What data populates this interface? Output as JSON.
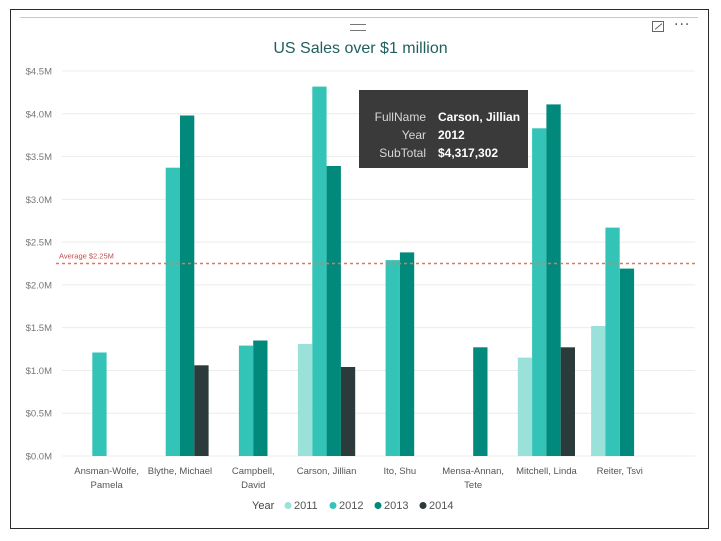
{
  "chart_data": {
    "type": "bar",
    "title": "US Sales over $1 million",
    "categories": [
      [
        "Ansman-Wolfe,",
        "Pamela"
      ],
      [
        "Blythe, Michael"
      ],
      [
        "Campbell,",
        "David"
      ],
      [
        "Carson, Jillian"
      ],
      [
        "Ito, Shu"
      ],
      [
        "Mensa-Annan,",
        "Tete"
      ],
      [
        "Mitchell, Linda"
      ],
      [
        "Reiter, Tsvi"
      ]
    ],
    "series": [
      {
        "name": "2011",
        "color": "#99e1d9",
        "values": [
          null,
          null,
          null,
          1.31,
          null,
          null,
          1.15,
          1.52
        ]
      },
      {
        "name": "2012",
        "color": "#33c4b7",
        "values": [
          1.21,
          3.37,
          1.29,
          4.317302,
          2.29,
          null,
          3.83,
          2.67
        ]
      },
      {
        "name": "2013",
        "color": "#01897b",
        "values": [
          null,
          3.98,
          1.35,
          3.39,
          2.38,
          1.27,
          4.11,
          2.19
        ]
      },
      {
        "name": "2014",
        "color": "#2b3a3a",
        "values": [
          null,
          1.06,
          null,
          1.04,
          null,
          null,
          1.27,
          null
        ]
      }
    ],
    "ylim": [
      0,
      4.5
    ],
    "yticks": [
      "$0.0M",
      "$0.5M",
      "$1.0M",
      "$1.5M",
      "$2.0M",
      "$2.5M",
      "$3.0M",
      "$3.5M",
      "$4.0M",
      "$4.5M"
    ],
    "average": {
      "value": 2.25,
      "label": "Average $2.25M",
      "color": "#d97b5f"
    },
    "legend": {
      "title": "Year",
      "placement": "bottom"
    },
    "grid": true
  },
  "tooltip": {
    "rows": [
      {
        "key": "FullName",
        "value": "Carson, Jillian"
      },
      {
        "key": "Year",
        "value": "2012"
      },
      {
        "key": "SubTotal",
        "value": "$4,317,302"
      }
    ]
  },
  "icons": {
    "focus": "focus-mode-icon",
    "more": "more-options-icon",
    "drag": "drag-handle-icon"
  },
  "more_glyph": "···"
}
